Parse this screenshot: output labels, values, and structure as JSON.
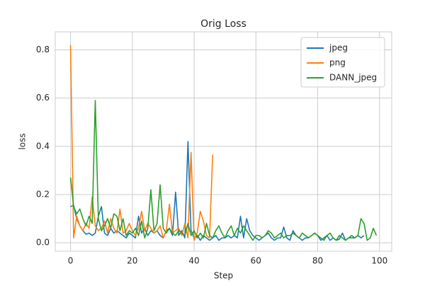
{
  "chart_data": {
    "type": "line",
    "title": "Orig Loss",
    "x_label": "Step",
    "y_label": "loss",
    "xlim": [
      -4.95,
      103.95
    ],
    "ylim": [
      -0.035,
      0.875
    ],
    "xticks": [
      0,
      20,
      40,
      60,
      80,
      100
    ],
    "yticks": [
      {
        "value": 0,
        "label": "0.0"
      },
      {
        "value": 0.2,
        "label": "0.2"
      },
      {
        "value": 0.4,
        "label": "0.4"
      },
      {
        "value": 0.6,
        "label": "0.6"
      },
      {
        "value": 0.8,
        "label": "0.8"
      }
    ],
    "grid": true,
    "legend": "upper right",
    "series": [
      {
        "name": "jpeg",
        "color": "#1f77b4",
        "values": [
          0.15,
          0.155,
          0.1,
          0.07,
          0.05,
          0.035,
          0.04,
          0.03,
          0.04,
          0.11,
          0.15,
          0.04,
          0.03,
          0.06,
          0.04,
          0.05,
          0.04,
          0.03,
          0.02,
          0.04,
          0.03,
          0.02,
          0.11,
          0.04,
          0.06,
          0.03,
          0.05,
          0.04,
          0.05,
          0.03,
          0.02,
          0.05,
          0.06,
          0.03,
          0.21,
          0.03,
          0.05,
          0.02,
          0.42,
          0.05,
          0.02,
          0.03,
          0.01,
          0.03,
          0.02,
          0.01,
          0.02,
          0.03,
          0.01,
          0.02,
          0.02,
          0.03,
          0.02,
          0.03,
          0.02,
          0.11,
          0.02,
          0.1,
          0.05,
          0.03,
          0.02,
          0.01,
          0.02,
          0.03,
          0.04,
          0.02,
          0.01,
          0.02,
          0.02,
          0.065,
          0.02,
          0.01,
          0.05,
          0.03,
          0.02,
          0.01,
          0.02,
          0.02,
          0.03,
          0.04,
          0.03,
          0.01,
          0.02,
          0.03,
          0.01,
          0.02,
          0.01,
          0.015,
          0.04,
          0.01,
          0.02,
          0.02,
          0.02,
          0.03,
          0.02,
          0.03
        ]
      },
      {
        "name": "png",
        "color": "#ff7f0e",
        "values": [
          0.82,
          0.02,
          0.11,
          0.07,
          0.05,
          0.08,
          0.06,
          0.19,
          0.07,
          0.05,
          0.06,
          0.09,
          0.04,
          0.1,
          0.06,
          0.04,
          0.14,
          0.04,
          0.05,
          0.08,
          0.05,
          0.03,
          0.06,
          0.13,
          0.05,
          0.08,
          0.06,
          0.04,
          0.05,
          0.07,
          0.02,
          0.05,
          0.16,
          0.04,
          0.05,
          0.06,
          0.03,
          0.08,
          0.02,
          0.375,
          0.01,
          0.04,
          0.13,
          0.09,
          0.03,
          0.02,
          0.365
        ]
      },
      {
        "name": "DANN_jpeg",
        "color": "#2ca02c",
        "values": [
          0.27,
          0.15,
          0.12,
          0.14,
          0.1,
          0.07,
          0.11,
          0.08,
          0.59,
          0.1,
          0.05,
          0.07,
          0.1,
          0.06,
          0.12,
          0.11,
          0.05,
          0.1,
          0.03,
          0.05,
          0.04,
          0.06,
          0.03,
          0.09,
          0.02,
          0.06,
          0.22,
          0.05,
          0.08,
          0.24,
          0.06,
          0.04,
          0.06,
          0.04,
          0.03,
          0.05,
          0.04,
          0.03,
          0.08,
          0.03,
          0.05,
          0.02,
          0.04,
          0.02,
          0.08,
          0.03,
          0.02,
          0.05,
          0.07,
          0.04,
          0.02,
          0.05,
          0.07,
          0.03,
          0.06,
          0.04,
          0.07,
          0.05,
          0.03,
          0.01,
          0.03,
          0.03,
          0.02,
          0.03,
          0.05,
          0.04,
          0.02,
          0.03,
          0.04,
          0.02,
          0.03,
          0.03,
          0.04,
          0.03,
          0.02,
          0.04,
          0.03,
          0.02,
          0.03,
          0.04,
          0.03,
          0.02,
          0.01,
          0.03,
          0.04,
          0.02,
          0.01,
          0.03,
          0.02,
          0.01,
          0.02,
          0.03,
          0.02,
          0.03,
          0.1,
          0.08,
          0.01,
          0.02,
          0.06,
          0.03
        ]
      }
    ]
  }
}
